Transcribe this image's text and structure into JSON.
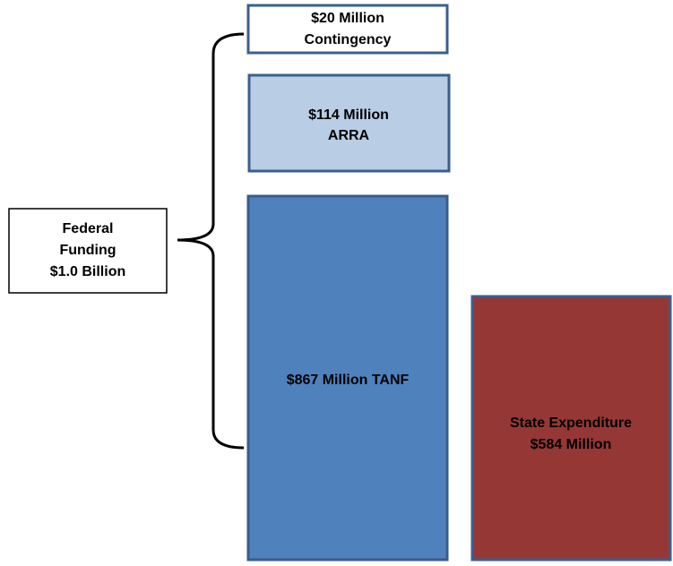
{
  "nodes": [
    {
      "lines": [
        "$20 Million",
        "Contingency"
      ]
    },
    {
      "lines": [
        "$114 Million",
        "ARRA"
      ]
    },
    {
      "lines": [
        "$867 Million TANF"
      ]
    },
    {
      "lines": [
        "State Expenditure",
        "$584 Million"
      ]
    },
    {
      "lines": [
        "Federal",
        "Funding",
        "$1.0 Billion"
      ]
    }
  ]
}
